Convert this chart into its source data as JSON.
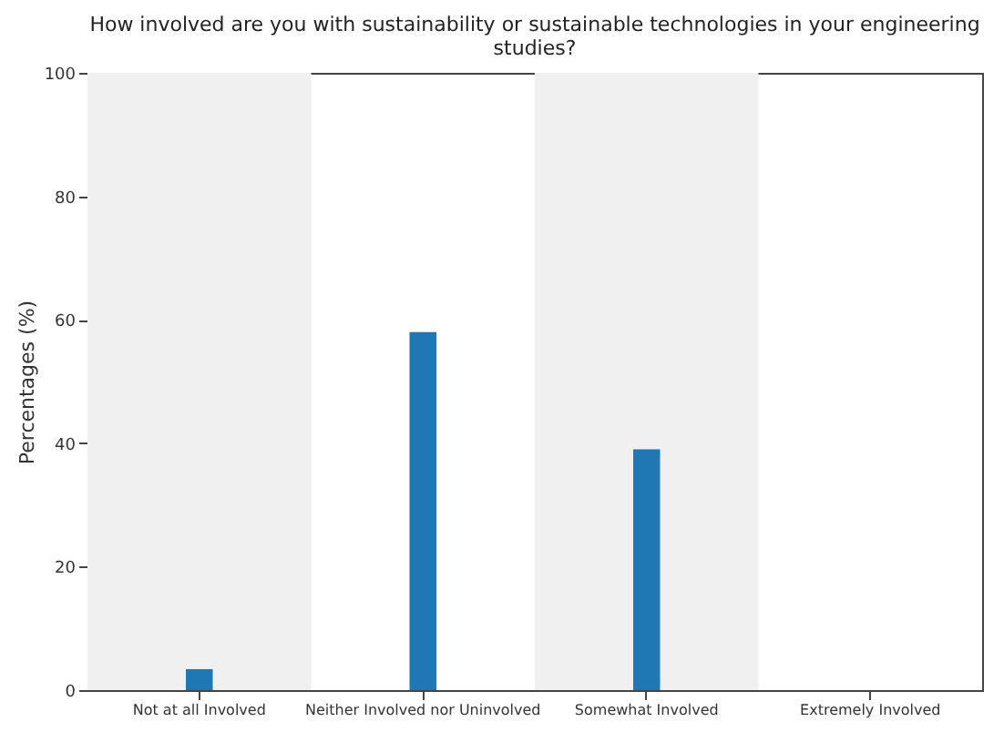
{
  "chart_data": {
    "type": "bar",
    "title": [
      "How involved are you with sustainability or sustainable technologies in your engineering",
      "studies?"
    ],
    "ylabel": "Percentages (%)",
    "categories": [
      "Not at all Involved",
      "Neither Involved nor Uninvolved",
      "Somewhat Involved",
      "Extremely Involved"
    ],
    "values": [
      3.4,
      58,
      39,
      0
    ],
    "color": "#1f77b4",
    "ylim": [
      0,
      100
    ],
    "yticks": [
      0,
      20,
      40,
      60,
      80,
      100
    ],
    "bands": [
      {
        "axis": "x",
        "from": "Not at all Involved",
        "to": "Not at all Involved",
        "color": "#f0f0f0"
      },
      {
        "axis": "x",
        "from": "Somewhat Involved",
        "to": "Somewhat Involved",
        "color": "#f0f0f0"
      }
    ]
  }
}
